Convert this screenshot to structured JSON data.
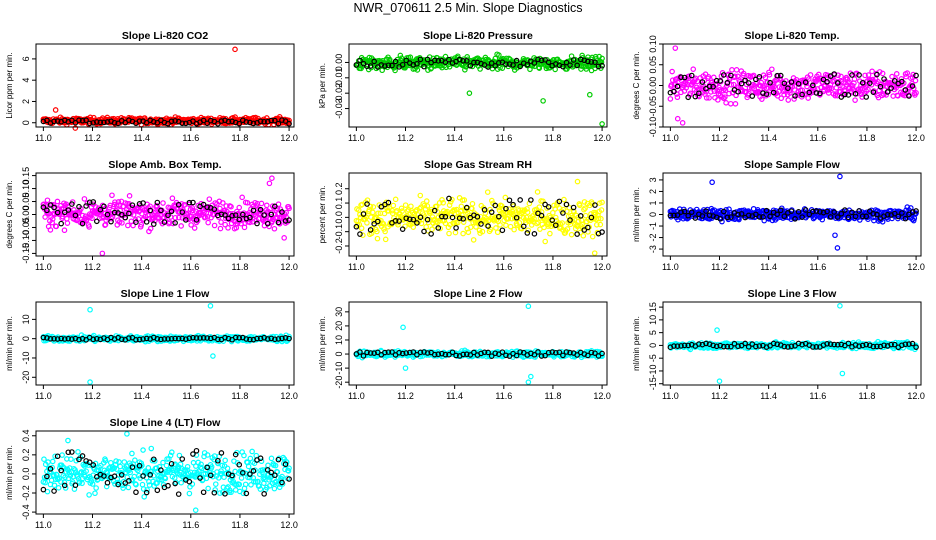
{
  "figure_title": "NWR_070611  2.5 Min. Slope Diagnostics",
  "chart_data": [
    {
      "type": "scatter",
      "title": "Slope Li-820 CO2",
      "ylabel": "Licor ppm per min.",
      "xlim": [
        10.97,
        12.02
      ],
      "ylim": [
        -0.4,
        7.4
      ],
      "xticks": [
        11.0,
        11.2,
        11.4,
        11.6,
        11.8,
        12.0
      ],
      "yticks": [
        0,
        2,
        4,
        6
      ],
      "ytick_labels": [
        "0",
        "2",
        "4",
        "6"
      ],
      "colors": {
        "main": "#ff0000",
        "secondary": "#000000"
      },
      "dist": {
        "a": -0.18,
        "b": 0.55,
        "sec_a": -0.1,
        "sec_b": 0.25,
        "outliers": [
          [
            11.78,
            6.9
          ],
          [
            11.13,
            -0.5
          ],
          [
            11.05,
            1.2
          ]
        ]
      }
    },
    {
      "type": "scatter",
      "title": "Slope Li-820 Pressure",
      "ylabel": "kPa per min.",
      "xlim": [
        10.97,
        12.02
      ],
      "ylim": [
        -0.042,
        0.012
      ],
      "xticks": [
        11.0,
        11.2,
        11.4,
        11.6,
        11.8,
        12.0
      ],
      "yticks": [
        0.0,
        -0.01,
        -0.02,
        -0.03
      ],
      "ytick_labels": [
        "0.00",
        "-0.01",
        "-0.02",
        "-0.03"
      ],
      "colors": {
        "main": "#00cc00",
        "secondary": "#000000"
      },
      "dist": {
        "a": -0.006,
        "b": 0.005,
        "sec_a": -0.003,
        "sec_b": 0.002,
        "outliers": [
          [
            12.0,
            -0.04
          ],
          [
            11.95,
            -0.021
          ],
          [
            11.76,
            -0.025
          ],
          [
            11.46,
            -0.02
          ]
        ]
      }
    },
    {
      "type": "scatter",
      "title": "Slope Li-820 Temp.",
      "ylabel": "degrees C per min.",
      "xlim": [
        10.97,
        12.02
      ],
      "ylim": [
        -0.1,
        0.1
      ],
      "xticks": [
        11.0,
        11.2,
        11.4,
        11.6,
        11.8,
        12.0
      ],
      "yticks": [
        -0.1,
        -0.05,
        0.0,
        0.05,
        0.1
      ],
      "ytick_labels": [
        "-0.10",
        "-0.05",
        "0.00",
        "0.05",
        "0.10"
      ],
      "colors": {
        "main": "#ff00ff",
        "secondary": "#000000"
      },
      "dist": {
        "a": -0.045,
        "b": 0.045,
        "sec_a": -0.03,
        "sec_b": 0.03,
        "outliers": [
          [
            11.02,
            0.09
          ],
          [
            11.05,
            -0.09
          ],
          [
            11.03,
            -0.08
          ]
        ]
      }
    },
    {
      "type": "scatter",
      "title": "Slope Amb. Box Temp.",
      "ylabel": "degrees C per min.",
      "xlim": [
        10.97,
        12.02
      ],
      "ylim": [
        -0.16,
        0.16
      ],
      "xticks": [
        11.0,
        11.2,
        11.4,
        11.6,
        11.8,
        12.0
      ],
      "yticks": [
        -0.15,
        -0.1,
        -0.05,
        0.0,
        0.05,
        0.1,
        0.15
      ],
      "ytick_labels": [
        "-0.15",
        "-0.10",
        "-0.05",
        "0.00",
        "0.05",
        "0.10",
        "0.15"
      ],
      "colors": {
        "main": "#ff00ff",
        "secondary": "#000000"
      },
      "dist": {
        "a": -0.06,
        "b": 0.07,
        "sec_a": -0.04,
        "sec_b": 0.05,
        "outliers": [
          [
            11.93,
            0.14
          ],
          [
            11.92,
            0.12
          ],
          [
            11.24,
            -0.15
          ],
          [
            11.98,
            -0.09
          ]
        ]
      }
    },
    {
      "type": "scatter",
      "title": "Slope Gas Stream RH",
      "ylabel": "percent per min.",
      "xlim": [
        10.97,
        12.02
      ],
      "ylim": [
        -0.27,
        0.31
      ],
      "xticks": [
        11.0,
        11.2,
        11.4,
        11.6,
        11.8,
        12.0
      ],
      "yticks": [
        -0.2,
        -0.1,
        0.0,
        0.1,
        0.2
      ],
      "ytick_labels": [
        "-0.2",
        "-0.1",
        "0.0",
        "0.1",
        "0.2"
      ],
      "colors": {
        "main": "#ffff00",
        "secondary": "#000000"
      },
      "dist": {
        "a": -0.16,
        "b": 0.16,
        "sec_a": -0.12,
        "sec_b": 0.14,
        "outliers": [
          [
            11.9,
            0.25
          ],
          [
            11.97,
            -0.25
          ]
        ]
      }
    },
    {
      "type": "scatter",
      "title": "Slope Sample Flow",
      "ylabel": "ml/min per min.",
      "xlim": [
        10.97,
        12.02
      ],
      "ylim": [
        -3.6,
        3.6
      ],
      "xticks": [
        11.0,
        11.2,
        11.4,
        11.6,
        11.8,
        12.0
      ],
      "yticks": [
        -3,
        -2,
        -1,
        0,
        1,
        2,
        3
      ],
      "ytick_labels": [
        "-3",
        "-2",
        "-1",
        "0",
        "1",
        "2",
        "3"
      ],
      "colors": {
        "main": "#0000ff",
        "secondary": "#000000"
      },
      "dist": {
        "a": -0.6,
        "b": 0.6,
        "sec_a": -0.4,
        "sec_b": 0.4,
        "outliers": [
          [
            11.69,
            3.3
          ],
          [
            11.68,
            -2.9
          ],
          [
            11.17,
            2.8
          ],
          [
            11.67,
            -1.8
          ]
        ]
      }
    },
    {
      "type": "scatter",
      "title": "Slope Line 1 Flow",
      "ylabel": "ml/min per min.",
      "xlim": [
        10.97,
        12.02
      ],
      "ylim": [
        -24,
        19
      ],
      "xticks": [
        11.0,
        11.2,
        11.4,
        11.6,
        11.8,
        12.0
      ],
      "yticks": [
        -20,
        -10,
        0,
        10
      ],
      "ytick_labels": [
        "-20",
        "-10",
        "0",
        "10"
      ],
      "colors": {
        "main": "#00ffff",
        "secondary": "#000000"
      },
      "dist": {
        "a": -1.8,
        "b": 1.8,
        "sec_a": -0.6,
        "sec_b": 0.6,
        "outliers": [
          [
            11.19,
            -22.5
          ],
          [
            11.19,
            15
          ],
          [
            11.68,
            17
          ],
          [
            11.69,
            -9
          ]
        ]
      }
    },
    {
      "type": "scatter",
      "title": "Slope Line 2 Flow",
      "ylabel": "ml/min per min.",
      "xlim": [
        10.97,
        12.02
      ],
      "ylim": [
        -22,
        37
      ],
      "xticks": [
        11.0,
        11.2,
        11.4,
        11.6,
        11.8,
        12.0
      ],
      "yticks": [
        -20,
        -10,
        0,
        10,
        20,
        30
      ],
      "ytick_labels": [
        "-20",
        "-10",
        "0",
        "10",
        "20",
        "30"
      ],
      "colors": {
        "main": "#00ffff",
        "secondary": "#000000"
      },
      "dist": {
        "a": -2.5,
        "b": 2.5,
        "sec_a": -1.5,
        "sec_b": 1.5,
        "outliers": [
          [
            11.7,
            34
          ],
          [
            11.7,
            -20
          ],
          [
            11.19,
            19
          ],
          [
            11.2,
            -10
          ],
          [
            11.71,
            -16
          ]
        ]
      }
    },
    {
      "type": "scatter",
      "title": "Slope Line 3 Flow",
      "ylabel": "ml/min per min.",
      "xlim": [
        10.97,
        12.02
      ],
      "ylim": [
        -15.5,
        17
      ],
      "xticks": [
        11.0,
        11.2,
        11.4,
        11.6,
        11.8,
        12.0
      ],
      "yticks": [
        -15,
        -10,
        -5,
        0,
        5,
        10,
        15
      ],
      "ytick_labels": [
        "-15",
        "-10",
        "-5",
        "0",
        "5",
        "10",
        "15"
      ],
      "colors": {
        "main": "#00ffff",
        "secondary": "#000000"
      },
      "dist": {
        "a": -1.5,
        "b": 1.5,
        "sec_a": -0.8,
        "sec_b": 0.8,
        "outliers": [
          [
            11.69,
            15.5
          ],
          [
            11.2,
            -14
          ],
          [
            11.7,
            -11
          ],
          [
            11.19,
            6
          ]
        ]
      }
    },
    {
      "type": "scatter",
      "title": "Slope Line 4 (LT) Flow",
      "ylabel": "ml/min per min.",
      "xlim": [
        10.97,
        12.02
      ],
      "ylim": [
        -0.42,
        0.45
      ],
      "xticks": [
        11.0,
        11.2,
        11.4,
        11.6,
        11.8,
        12.0
      ],
      "yticks": [
        -0.4,
        -0.2,
        0.0,
        0.2,
        0.4
      ],
      "ytick_labels": [
        "-0.4",
        "-0.2",
        "0.0",
        "0.2",
        "0.4"
      ],
      "colors": {
        "main": "#00ffff",
        "secondary": "#000000"
      },
      "dist": {
        "a": -0.24,
        "b": 0.28,
        "sec_a": -0.22,
        "sec_b": 0.25,
        "outliers": [
          [
            11.34,
            0.42
          ],
          [
            11.62,
            -0.38
          ],
          [
            11.1,
            0.35
          ]
        ]
      }
    }
  ]
}
